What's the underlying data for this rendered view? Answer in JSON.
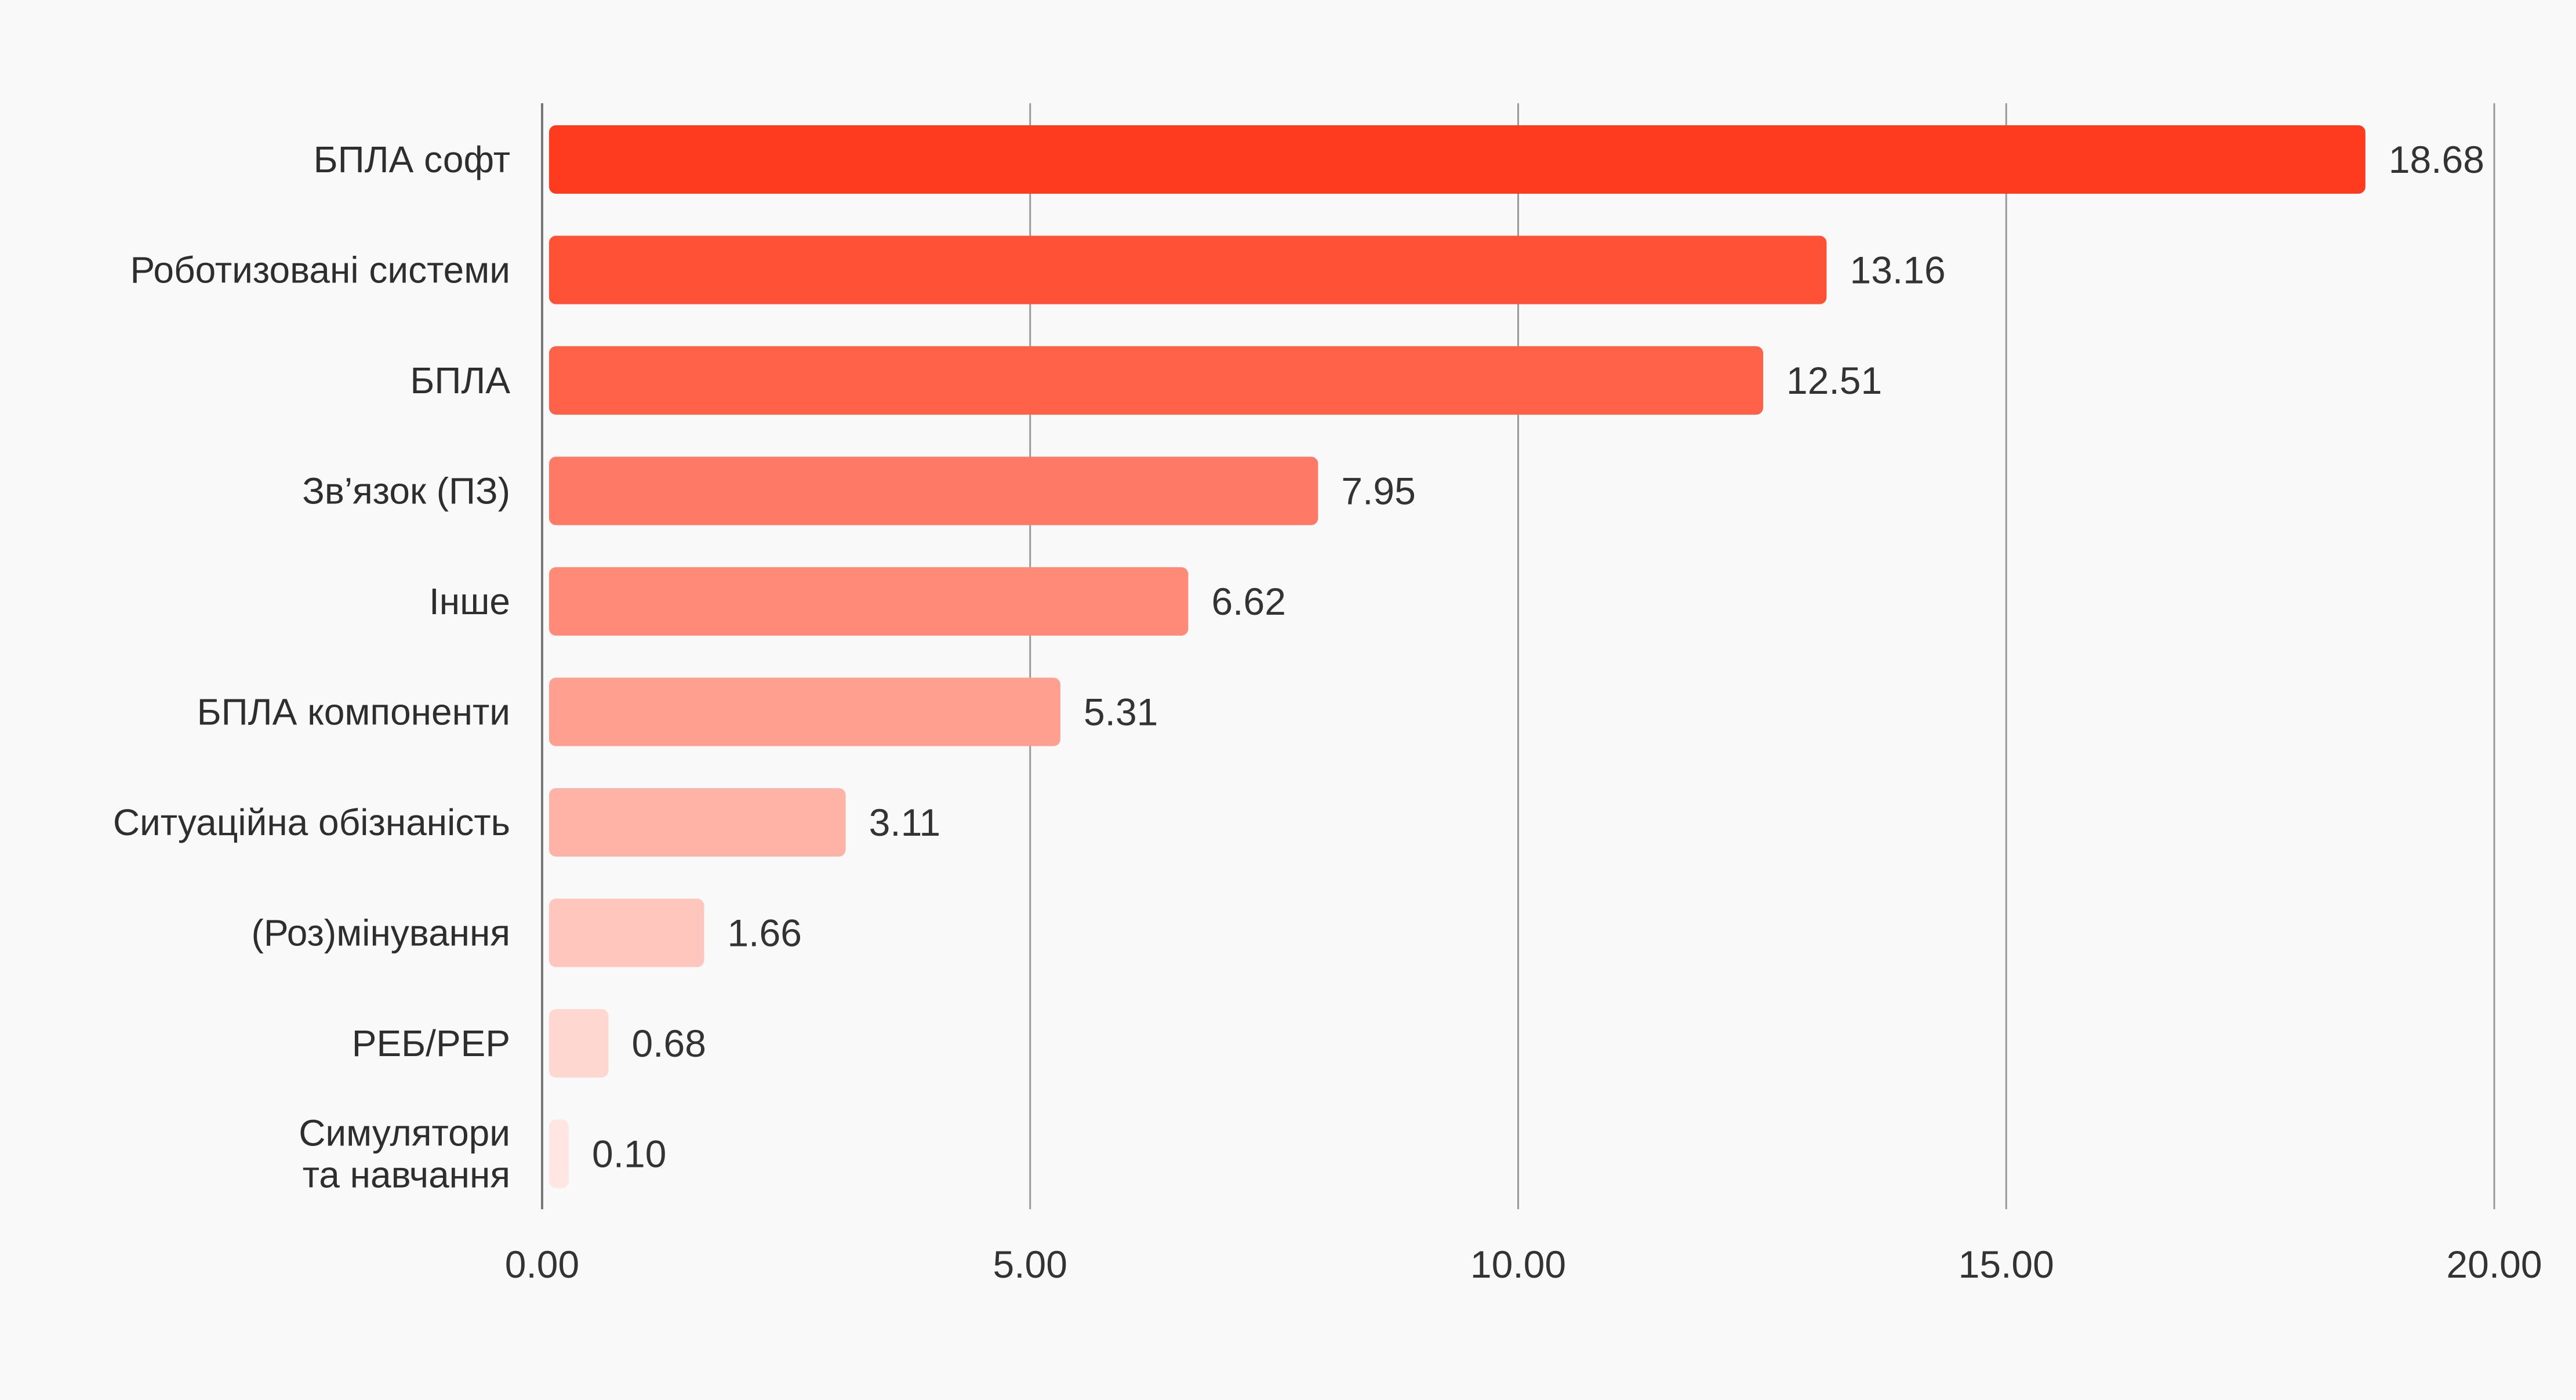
{
  "chart_data": {
    "type": "bar",
    "orientation": "horizontal",
    "title": "",
    "xlabel": "",
    "ylabel": "",
    "xlim": [
      0,
      20
    ],
    "ticks": [
      "0.00",
      "5.00",
      "10.00",
      "15.00",
      "20.00"
    ],
    "tick_values": [
      0,
      5,
      10,
      15,
      20
    ],
    "categories": [
      [
        "БПЛА софт"
      ],
      [
        "Роботизовані системи"
      ],
      [
        "БПЛА"
      ],
      [
        "Зв’язок (ПЗ)"
      ],
      [
        "Інше"
      ],
      [
        "БПЛА компоненти"
      ],
      [
        "Ситуаційна обізнаність"
      ],
      [
        "(Роз)мінування"
      ],
      [
        "РЕБ/РЕР"
      ],
      [
        "Симулятори",
        "та навчання"
      ]
    ],
    "values": [
      18.68,
      13.16,
      12.51,
      7.95,
      6.62,
      5.31,
      3.11,
      1.66,
      0.68,
      0.1
    ],
    "value_labels": [
      "18.68",
      "13.16",
      "12.51",
      "7.95",
      "6.62",
      "5.31",
      "3.11",
      "1.66",
      "0.68",
      "0.10"
    ],
    "bar_colors": [
      "#ff3b1f",
      "#ff5136",
      "#ff6149",
      "#ff7a66",
      "#ff8a78",
      "#ff9f90",
      "#ffb3a7",
      "#ffc6bd",
      "#ffd7d1",
      "#ffe6e2"
    ],
    "grid": true,
    "legend": "none"
  }
}
